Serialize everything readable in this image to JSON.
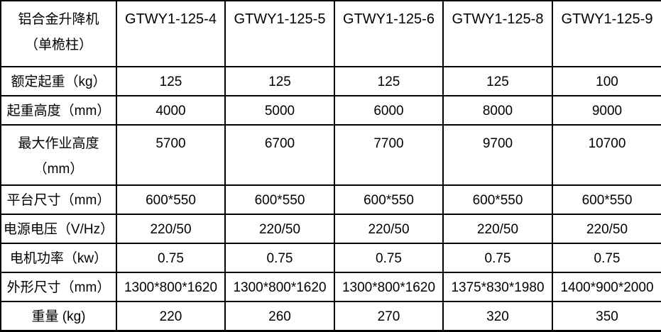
{
  "table": {
    "header": {
      "title_line1": "铝合金升降机",
      "title_line2": "（单桅柱）",
      "columns": [
        "GTWY1-125-4",
        "GTWY1-125-5",
        "GTWY1-125-6",
        "GTWY1-125-8",
        "GTWY1-125-9"
      ]
    },
    "rows": [
      {
        "label_lines": [
          "额定起重（kg）"
        ],
        "tall": false,
        "values": [
          "125",
          "125",
          "125",
          "125",
          "100"
        ]
      },
      {
        "label_lines": [
          "起重高度（mm）"
        ],
        "tall": false,
        "values": [
          "4000",
          "5000",
          "6000",
          "8000",
          "9000"
        ]
      },
      {
        "label_lines": [
          "最大作业高度",
          "（mm）"
        ],
        "tall": true,
        "values": [
          "5700",
          "6700",
          "7700",
          "9700",
          "10700"
        ]
      },
      {
        "label_lines": [
          "平台尺寸（mm）"
        ],
        "tall": false,
        "values": [
          "600*550",
          "600*550",
          "600*550",
          "600*550",
          "600*550"
        ]
      },
      {
        "label_lines": [
          "电源电压（V/Hz）"
        ],
        "tall": false,
        "values": [
          "220/50",
          "220/50",
          "220/50",
          "220/50",
          "220/50"
        ]
      },
      {
        "label_lines": [
          "电机功率（kw）"
        ],
        "tall": false,
        "values": [
          "0.75",
          "0.75",
          "0.75",
          "0.75",
          "0.75"
        ]
      },
      {
        "label_lines": [
          "外形尺寸（mm）"
        ],
        "tall": false,
        "values": [
          "1300*800*1620",
          "1300*800*1620",
          "1300*800*1620",
          "1375*830*1980",
          "1400*900*2000"
        ]
      },
      {
        "label_lines": [
          "重量 (kg)"
        ],
        "tall": false,
        "values": [
          "220",
          "260",
          "270",
          "320",
          "350"
        ]
      }
    ]
  },
  "colors": {
    "border": "#000000",
    "text": "#000000",
    "background": "#ffffff"
  }
}
